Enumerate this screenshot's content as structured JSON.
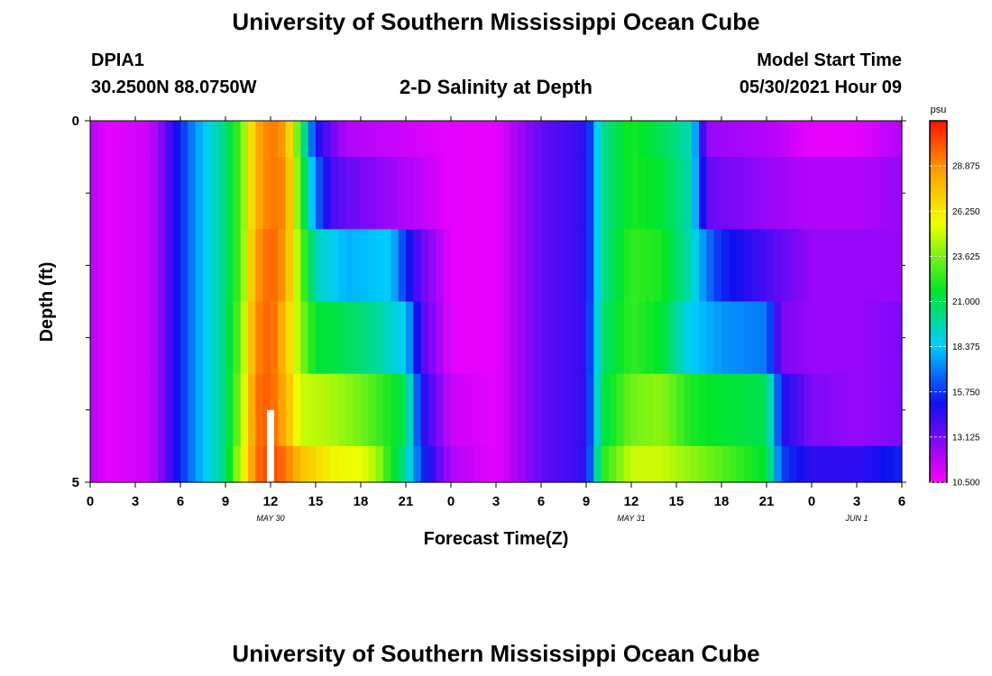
{
  "page": {
    "title_top": "University of Southern Mississippi Ocean Cube",
    "title_bottom": "University of Southern Mississippi Ocean Cube",
    "station_id": "DPIA1",
    "station_coords": "30.2500N  88.0750W",
    "plot_title": "2-D Salinity at Depth",
    "model_label": "Model Start Time",
    "model_time": "05/30/2021 Hour 09"
  },
  "chart_data": {
    "type": "heatmap",
    "title": "2-D Salinity at Depth",
    "xlabel": "Forecast Time(Z)",
    "ylabel": "Depth (ft)",
    "x_range_hours": [
      0,
      54
    ],
    "y_range_ft": [
      0,
      5
    ],
    "x_ticks": [
      {
        "hour": 0,
        "label": "0"
      },
      {
        "hour": 3,
        "label": "3"
      },
      {
        "hour": 6,
        "label": "6"
      },
      {
        "hour": 9,
        "label": "9"
      },
      {
        "hour": 12,
        "label": "12"
      },
      {
        "hour": 15,
        "label": "15"
      },
      {
        "hour": 18,
        "label": "18"
      },
      {
        "hour": 21,
        "label": "21"
      },
      {
        "hour": 24,
        "label": "0"
      },
      {
        "hour": 27,
        "label": "3"
      },
      {
        "hour": 30,
        "label": "6"
      },
      {
        "hour": 33,
        "label": "9"
      },
      {
        "hour": 36,
        "label": "12"
      },
      {
        "hour": 39,
        "label": "15"
      },
      {
        "hour": 42,
        "label": "18"
      },
      {
        "hour": 45,
        "label": "21"
      },
      {
        "hour": 48,
        "label": "0"
      },
      {
        "hour": 51,
        "label": "3"
      },
      {
        "hour": 54,
        "label": "6"
      }
    ],
    "date_labels": [
      {
        "hour": 12,
        "label": "MAY 30"
      },
      {
        "hour": 36,
        "label": "MAY 31"
      },
      {
        "hour": 51,
        "label": "JUN 1"
      }
    ],
    "y_ticks": [
      {
        "depth": 0,
        "label": "0"
      },
      {
        "depth": 5,
        "label": "5"
      }
    ],
    "y_minor_ticks": [
      1,
      2,
      3,
      4
    ],
    "model_start_marker": {
      "hour": 12,
      "depth_from": 4.0,
      "depth_to": 5.0
    },
    "colorbar": {
      "units": "psu",
      "min": 10.5,
      "max": 31.5,
      "ticks": [
        10.5,
        13.125,
        15.75,
        18.375,
        21.0,
        23.625,
        26.25,
        28.875
      ],
      "tick_labels": [
        "10.500",
        "13.125",
        "15.750",
        "18.375",
        "21.000",
        "23.625",
        "26.250",
        "28.875"
      ]
    },
    "depth_layers": [
      {
        "depth_from": 0.0,
        "depth_to": 0.5
      },
      {
        "depth_from": 0.5,
        "depth_to": 1.5
      },
      {
        "depth_from": 1.5,
        "depth_to": 2.5
      },
      {
        "depth_from": 2.5,
        "depth_to": 3.5
      },
      {
        "depth_from": 3.5,
        "depth_to": 4.5
      },
      {
        "depth_from": 4.5,
        "depth_to": 5.0
      }
    ],
    "salinity_keyframes_psu": [
      [
        [
          0,
          12.0
        ],
        [
          1,
          11.0
        ],
        [
          4,
          11.5
        ],
        [
          5,
          13.5
        ],
        [
          6,
          15.5
        ],
        [
          7,
          17.5
        ],
        [
          8,
          19.0
        ],
        [
          9,
          20.5
        ],
        [
          10,
          23.0
        ],
        [
          11,
          28.0
        ],
        [
          12,
          29.5
        ],
        [
          13,
          28.5
        ],
        [
          14,
          22.0
        ],
        [
          15,
          15.0
        ],
        [
          17,
          12.0
        ],
        [
          24,
          11.0
        ],
        [
          27,
          11.0
        ],
        [
          30,
          13.5
        ],
        [
          33,
          14.5
        ],
        [
          34,
          20.0
        ],
        [
          36,
          22.0
        ],
        [
          38,
          21.0
        ],
        [
          40,
          19.5
        ],
        [
          41,
          12.5
        ],
        [
          45,
          12.0
        ],
        [
          48,
          11.0
        ],
        [
          51,
          11.0
        ],
        [
          54,
          12.0
        ]
      ],
      [
        [
          0,
          12.0
        ],
        [
          1,
          11.0
        ],
        [
          4,
          11.5
        ],
        [
          5,
          13.5
        ],
        [
          6,
          15.5
        ],
        [
          7,
          17.5
        ],
        [
          8,
          19.0
        ],
        [
          9,
          20.5
        ],
        [
          10,
          23.0
        ],
        [
          11,
          28.0
        ],
        [
          12,
          29.5
        ],
        [
          13,
          29.0
        ],
        [
          14,
          22.5
        ],
        [
          15,
          17.0
        ],
        [
          16,
          14.0
        ],
        [
          17,
          13.5
        ],
        [
          24,
          11.0
        ],
        [
          27,
          11.0
        ],
        [
          30,
          13.5
        ],
        [
          33,
          14.5
        ],
        [
          34,
          20.0
        ],
        [
          36,
          22.0
        ],
        [
          38,
          21.5
        ],
        [
          40,
          19.5
        ],
        [
          41,
          13.5
        ],
        [
          45,
          12.5
        ],
        [
          48,
          12.0
        ],
        [
          51,
          12.0
        ],
        [
          54,
          12.5
        ]
      ],
      [
        [
          0,
          12.0
        ],
        [
          1,
          11.0
        ],
        [
          4,
          11.5
        ],
        [
          5,
          13.5
        ],
        [
          6,
          15.5
        ],
        [
          7,
          17.5
        ],
        [
          8,
          19.0
        ],
        [
          9,
          20.5
        ],
        [
          10,
          23.0
        ],
        [
          11,
          28.5
        ],
        [
          12,
          30.0
        ],
        [
          13,
          28.5
        ],
        [
          14,
          23.5
        ],
        [
          15,
          19.5
        ],
        [
          17,
          18.0
        ],
        [
          20,
          18.5
        ],
        [
          21,
          15.5
        ],
        [
          22,
          13.5
        ],
        [
          24,
          11.0
        ],
        [
          27,
          11.0
        ],
        [
          30,
          13.5
        ],
        [
          33,
          14.5
        ],
        [
          34,
          20.0
        ],
        [
          36,
          22.5
        ],
        [
          38,
          22.0
        ],
        [
          40,
          19.5
        ],
        [
          41,
          17.0
        ],
        [
          42,
          15.5
        ],
        [
          46,
          13.5
        ],
        [
          48,
          12.5
        ],
        [
          51,
          12.5
        ],
        [
          54,
          12.5
        ]
      ],
      [
        [
          0,
          12.0
        ],
        [
          1,
          11.0
        ],
        [
          4,
          11.5
        ],
        [
          5,
          13.5
        ],
        [
          6,
          15.5
        ],
        [
          7,
          17.5
        ],
        [
          8,
          19.0
        ],
        [
          9,
          20.5
        ],
        [
          10,
          23.5
        ],
        [
          11,
          29.0
        ],
        [
          12,
          30.0
        ],
        [
          13,
          27.5
        ],
        [
          14,
          24.0
        ],
        [
          15,
          21.5
        ],
        [
          17,
          21.0
        ],
        [
          19,
          20.0
        ],
        [
          21,
          18.5
        ],
        [
          22,
          14.0
        ],
        [
          24,
          11.0
        ],
        [
          27,
          11.0
        ],
        [
          30,
          13.5
        ],
        [
          33,
          14.5
        ],
        [
          34,
          20.5
        ],
        [
          36,
          22.5
        ],
        [
          38,
          21.5
        ],
        [
          40,
          18.5
        ],
        [
          42,
          17.5
        ],
        [
          45,
          17.0
        ],
        [
          46,
          13.0
        ],
        [
          48,
          12.5
        ],
        [
          51,
          12.5
        ],
        [
          54,
          13.0
        ]
      ],
      [
        [
          0,
          12.0
        ],
        [
          1,
          11.0
        ],
        [
          4,
          11.5
        ],
        [
          5,
          13.5
        ],
        [
          6,
          15.5
        ],
        [
          7,
          17.5
        ],
        [
          8,
          19.0
        ],
        [
          9,
          20.5
        ],
        [
          10,
          24.0
        ],
        [
          11,
          29.5
        ],
        [
          12,
          30.0
        ],
        [
          13,
          28.0
        ],
        [
          14,
          25.0
        ],
        [
          16,
          24.5
        ],
        [
          18,
          23.5
        ],
        [
          20,
          22.0
        ],
        [
          21,
          21.0
        ],
        [
          22,
          15.0
        ],
        [
          24,
          11.5
        ],
        [
          27,
          11.0
        ],
        [
          30,
          13.5
        ],
        [
          33,
          14.5
        ],
        [
          34,
          21.0
        ],
        [
          36,
          23.5
        ],
        [
          38,
          24.0
        ],
        [
          40,
          22.0
        ],
        [
          42,
          21.5
        ],
        [
          45,
          21.0
        ],
        [
          46,
          15.0
        ],
        [
          48,
          13.0
        ],
        [
          51,
          12.5
        ],
        [
          54,
          13.0
        ]
      ],
      [
        [
          0,
          12.0
        ],
        [
          1,
          11.0
        ],
        [
          4,
          11.5
        ],
        [
          5,
          13.5
        ],
        [
          6,
          15.5
        ],
        [
          7,
          17.5
        ],
        [
          8,
          19.0
        ],
        [
          9,
          20.5
        ],
        [
          10,
          25.0
        ],
        [
          11,
          29.5
        ],
        [
          12,
          30.5
        ],
        [
          13,
          29.5
        ],
        [
          14,
          27.5
        ],
        [
          16,
          26.0
        ],
        [
          18,
          25.5
        ],
        [
          19,
          24.5
        ],
        [
          20,
          22.0
        ],
        [
          21,
          20.0
        ],
        [
          22,
          16.0
        ],
        [
          24,
          12.0
        ],
        [
          27,
          11.0
        ],
        [
          30,
          13.5
        ],
        [
          33,
          14.5
        ],
        [
          34,
          22.0
        ],
        [
          36,
          25.0
        ],
        [
          38,
          25.0
        ],
        [
          40,
          24.0
        ],
        [
          43,
          22.5
        ],
        [
          45,
          21.5
        ],
        [
          46,
          16.0
        ],
        [
          48,
          14.5
        ],
        [
          51,
          14.5
        ],
        [
          54,
          15.5
        ]
      ]
    ]
  }
}
